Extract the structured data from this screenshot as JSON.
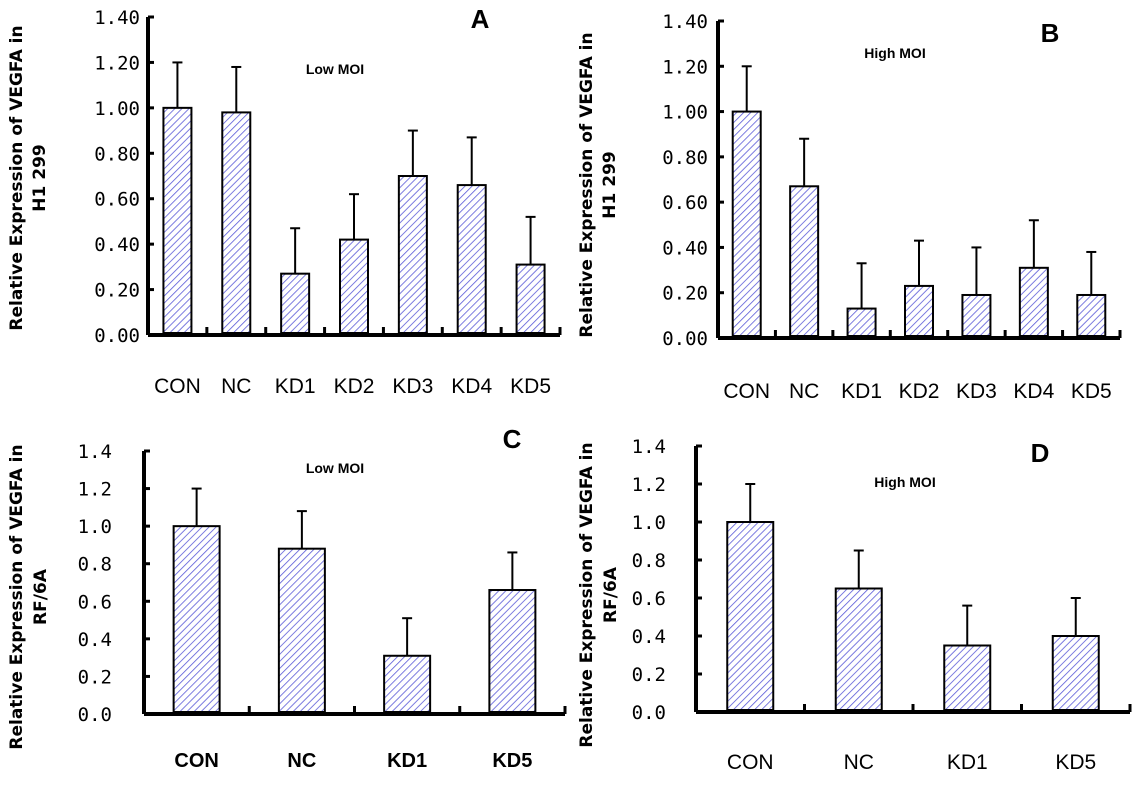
{
  "chart_data": [
    {
      "type": "bar",
      "panel_label": "A",
      "subtitle": "Low MOI",
      "ylabel_line1": "Relative Expression of VEGFA in",
      "ylabel_line2": "H1 299",
      "xlabel": "",
      "categories": [
        "CON",
        "NC",
        "KD1",
        "KD2",
        "KD3",
        "KD4",
        "KD5"
      ],
      "values": [
        1.0,
        0.98,
        0.27,
        0.42,
        0.7,
        0.66,
        0.31
      ],
      "error_upper": [
        1.2,
        1.18,
        0.47,
        0.62,
        0.9,
        0.87,
        0.52
      ],
      "ylim": [
        0,
        1.4
      ],
      "yticks": [
        "0.00",
        "0.20",
        "0.40",
        "0.60",
        "0.80",
        "1.00",
        "1.20",
        "1.40"
      ],
      "grid": false,
      "legend": "none"
    },
    {
      "type": "bar",
      "panel_label": "B",
      "subtitle": "High MOI",
      "ylabel_line1": "Relative Expression of VEGFA in",
      "ylabel_line2": "H1 299",
      "xlabel": "",
      "categories": [
        "CON",
        "NC",
        "KD1",
        "KD2",
        "KD3",
        "KD4",
        "KD5"
      ],
      "values": [
        1.0,
        0.67,
        0.13,
        0.23,
        0.19,
        0.31,
        0.19
      ],
      "error_upper": [
        1.2,
        0.88,
        0.33,
        0.43,
        0.4,
        0.52,
        0.38
      ],
      "ylim": [
        0,
        1.4
      ],
      "yticks": [
        "0.00",
        "0.20",
        "0.40",
        "0.60",
        "0.80",
        "1.00",
        "1.20",
        "1.40"
      ],
      "grid": false,
      "legend": "none"
    },
    {
      "type": "bar",
      "panel_label": "C",
      "subtitle": "Low MOI",
      "ylabel_line1": "Relative Expression of VEGFA in",
      "ylabel_line2": "RF/6A",
      "xlabel": "",
      "categories": [
        "CON",
        "NC",
        "KD1",
        "KD5"
      ],
      "values": [
        1.0,
        0.88,
        0.31,
        0.66
      ],
      "error_upper": [
        1.2,
        1.08,
        0.51,
        0.86
      ],
      "ylim": [
        0,
        1.4
      ],
      "yticks": [
        "0.0",
        "0.2",
        "0.4",
        "0.6",
        "0.8",
        "1.0",
        "1.2",
        "1.4"
      ],
      "grid": false,
      "legend": "none"
    },
    {
      "type": "bar",
      "panel_label": "D",
      "subtitle": "High MOI",
      "ylabel_line1": "Relative Expression of VEGFA in",
      "ylabel_line2": "RF/6A",
      "xlabel": "",
      "categories": [
        "CON",
        "NC",
        "KD1",
        "KD5"
      ],
      "values": [
        1.0,
        0.65,
        0.35,
        0.4
      ],
      "error_upper": [
        1.2,
        0.85,
        0.56,
        0.6
      ],
      "ylim": [
        0,
        1.4
      ],
      "yticks": [
        "0.0",
        "0.2",
        "0.4",
        "0.6",
        "0.8",
        "1.0",
        "1.2",
        "1.4"
      ],
      "grid": false,
      "legend": "none"
    }
  ],
  "colors": {
    "bar_hatch": "#5a5ad8",
    "bar_fill": "#ffffff",
    "axis": "#000000"
  }
}
